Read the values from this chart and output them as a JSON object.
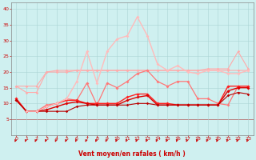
{
  "x": [
    0,
    1,
    2,
    3,
    4,
    5,
    6,
    7,
    8,
    9,
    10,
    11,
    12,
    13,
    14,
    15,
    16,
    17,
    18,
    19,
    20,
    21,
    22,
    23
  ],
  "series": [
    {
      "color": "#ffaaaa",
      "lw": 0.8,
      "marker": "D",
      "ms": 1.8,
      "values": [
        15.5,
        15.5,
        15.5,
        20.0,
        20.5,
        20.5,
        20.5,
        20.5,
        20.5,
        20.5,
        20.5,
        20.5,
        20.5,
        20.5,
        20.5,
        20.5,
        20.5,
        20.5,
        20.5,
        20.5,
        20.5,
        20.5,
        20.5,
        20.5
      ]
    },
    {
      "color": "#ffaaaa",
      "lw": 0.8,
      "marker": "D",
      "ms": 1.8,
      "values": [
        15.5,
        13.5,
        13.5,
        20.0,
        20.0,
        20.0,
        20.5,
        20.5,
        20.5,
        20.5,
        20.5,
        20.5,
        20.5,
        20.5,
        20.5,
        20.5,
        20.5,
        20.5,
        20.5,
        21.0,
        21.0,
        21.0,
        26.5,
        21.0
      ]
    },
    {
      "color": "#ff7777",
      "lw": 0.9,
      "marker": "D",
      "ms": 2.0,
      "values": [
        11.5,
        7.5,
        7.5,
        9.5,
        10.0,
        11.5,
        11.0,
        16.5,
        9.5,
        16.5,
        15.0,
        17.0,
        19.5,
        20.5,
        17.0,
        15.5,
        17.0,
        17.0,
        11.5,
        11.5,
        10.0,
        9.5,
        15.5,
        15.5
      ]
    },
    {
      "color": "#ff2222",
      "lw": 1.0,
      "marker": "D",
      "ms": 2.0,
      "values": [
        11.5,
        7.5,
        7.5,
        9.0,
        10.0,
        11.0,
        11.0,
        10.0,
        10.0,
        10.0,
        10.0,
        12.0,
        13.0,
        13.0,
        10.0,
        10.0,
        9.5,
        9.5,
        9.5,
        9.5,
        9.5,
        15.5,
        15.5,
        15.5
      ]
    },
    {
      "color": "#dd0000",
      "lw": 1.0,
      "marker": "D",
      "ms": 2.0,
      "values": [
        11.0,
        7.5,
        7.5,
        8.0,
        9.0,
        10.0,
        10.5,
        10.0,
        9.5,
        9.5,
        9.5,
        11.0,
        12.0,
        12.5,
        9.5,
        9.5,
        9.5,
        9.5,
        9.5,
        9.5,
        9.5,
        14.0,
        15.0,
        15.0
      ]
    },
    {
      "color": "#bb0000",
      "lw": 0.8,
      "marker": "D",
      "ms": 1.8,
      "values": [
        11.0,
        7.5,
        7.5,
        7.5,
        7.5,
        7.5,
        9.0,
        9.5,
        9.5,
        9.5,
        9.5,
        9.5,
        10.0,
        10.0,
        9.5,
        9.5,
        9.5,
        9.5,
        9.5,
        9.5,
        9.5,
        12.5,
        13.5,
        13.0
      ]
    },
    {
      "color": "#ffbbbb",
      "lw": 1.0,
      "marker": "D",
      "ms": 2.0,
      "values": [
        null,
        7.5,
        7.5,
        9.0,
        10.0,
        11.5,
        17.0,
        26.5,
        16.5,
        26.5,
        30.5,
        31.5,
        37.5,
        31.5,
        22.5,
        20.5,
        22.0,
        20.0,
        19.5,
        20.5,
        20.5,
        19.5,
        19.5,
        20.5
      ]
    }
  ],
  "xlabel": "Vent moyen/en rafales ( km/h )",
  "xlim": [
    -0.5,
    23.5
  ],
  "ylim": [
    0,
    42
  ],
  "yticks": [
    5,
    10,
    15,
    20,
    25,
    30,
    35,
    40
  ],
  "xticks": [
    0,
    1,
    2,
    3,
    4,
    5,
    6,
    7,
    8,
    9,
    10,
    11,
    12,
    13,
    14,
    15,
    16,
    17,
    18,
    19,
    20,
    21,
    22,
    23
  ],
  "bg_color": "#cff0f0",
  "grid_color": "#aad4d4",
  "xlabel_color": "#cc0000",
  "tick_color": "#cc0000",
  "arrow_color": "#cc0000",
  "spine_color": "#888888"
}
